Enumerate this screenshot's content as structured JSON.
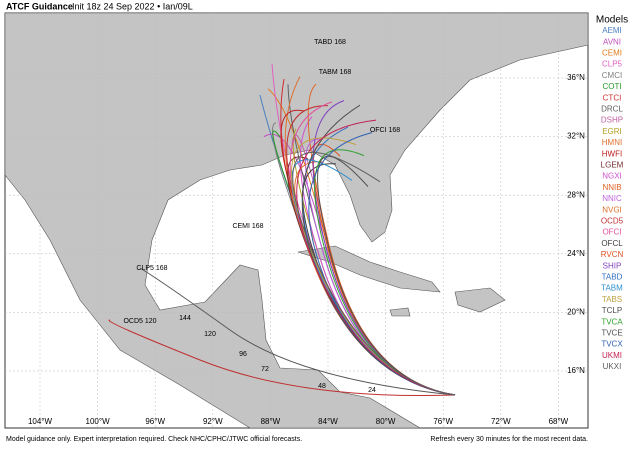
{
  "header": {
    "title": "ATCF Guidance",
    "subtitle": "Init 18z 24 Sep 2022 • Ian/09L"
  },
  "legend": {
    "title": "Models",
    "models": [
      {
        "name": "AEMI",
        "color": "#4a7fc1"
      },
      {
        "name": "AVNI",
        "color": "#c04fc0"
      },
      {
        "name": "CEMI",
        "color": "#e07b1f"
      },
      {
        "name": "CLP5",
        "color": "#e060c0"
      },
      {
        "name": "CMCI",
        "color": "#808080"
      },
      {
        "name": "COTI",
        "color": "#2a9a2a"
      },
      {
        "name": "CTCI",
        "color": "#d03030"
      },
      {
        "name": "DRCL",
        "color": "#606060"
      },
      {
        "name": "DSHP",
        "color": "#c060a0"
      },
      {
        "name": "EGRI",
        "color": "#b0a020"
      },
      {
        "name": "HMNI",
        "color": "#e07030"
      },
      {
        "name": "HWFI",
        "color": "#c02020"
      },
      {
        "name": "LGEM",
        "color": "#703030"
      },
      {
        "name": "NGXI",
        "color": "#d050d0"
      },
      {
        "name": "NNIB",
        "color": "#e06020"
      },
      {
        "name": "NNIC",
        "color": "#c060e0"
      },
      {
        "name": "NVGI",
        "color": "#e07030"
      },
      {
        "name": "OCD5",
        "color": "#c03030"
      },
      {
        "name": "OFCI",
        "color": "#e050a0"
      },
      {
        "name": "OFCL",
        "color": "#404040"
      },
      {
        "name": "RVCN",
        "color": "#e05020"
      },
      {
        "name": "SHIP",
        "color": "#8040c0"
      },
      {
        "name": "TABD",
        "color": "#3070c0"
      },
      {
        "name": "TABM",
        "color": "#3090d0"
      },
      {
        "name": "TABS",
        "color": "#c0a040"
      },
      {
        "name": "TCLP",
        "color": "#505050"
      },
      {
        "name": "TVCA",
        "color": "#30a030"
      },
      {
        "name": "TVCE",
        "color": "#505050"
      },
      {
        "name": "TVCX",
        "color": "#3060b0"
      },
      {
        "name": "UKMI",
        "color": "#c02050"
      },
      {
        "name": "UKXI",
        "color": "#606060"
      }
    ]
  },
  "map": {
    "lon_labels": [
      "104°W",
      "100°W",
      "96°W",
      "92°W",
      "88°W",
      "84°W",
      "80°W",
      "76°W",
      "72°W",
      "68°W"
    ],
    "lat_labels": [
      "36°N",
      "32°N",
      "28°N",
      "24°N",
      "20°N",
      "16°N"
    ],
    "track_labels": [
      "TABD 168",
      "TABM 168",
      "OCD5 120",
      "CLP5 168",
      "CEMI 168",
      "OFCI 168",
      "144",
      "120",
      "96",
      "72",
      "48",
      "24"
    ]
  },
  "footer": {
    "left": "Model guidance only. Expert interpretation required. Check NHC/CPHC/JTWC official forecasts.",
    "right": "Refresh every 30 minutes for the most recent data."
  }
}
